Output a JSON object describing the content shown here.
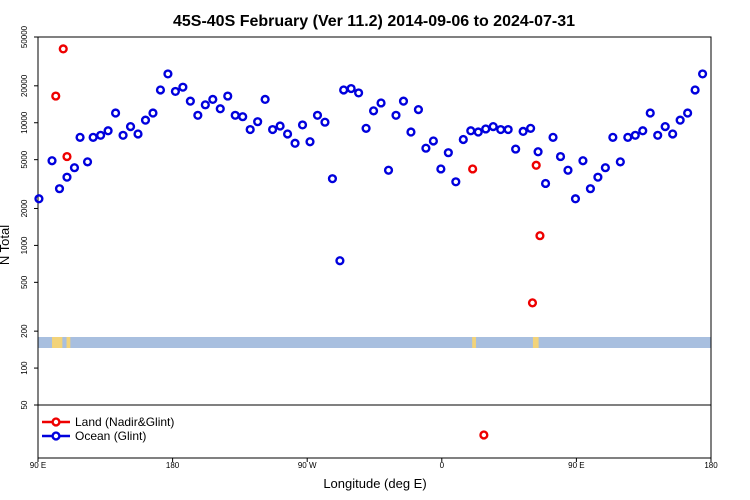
{
  "chart_data": {
    "type": "scatter",
    "title": "45S-40S February (Ver 11.2)   2014-09-06 to 2024-07-31",
    "xlabel": "Longitude (deg E)",
    "ylabel": "N Total",
    "y_scale": "log",
    "ylim": [
      50,
      50000
    ],
    "y_ticks": [
      50,
      100,
      200,
      500,
      1000,
      2000,
      5000,
      10000,
      20000,
      50000
    ],
    "y_tick_labels": [
      "50",
      "100",
      "200",
      "500",
      "1000",
      "2000",
      "5000",
      "10000",
      "20000",
      "50000"
    ],
    "x_tick_labels": [
      "90 E",
      "180",
      "90 W",
      "0",
      "90 E",
      "180"
    ],
    "grid": false,
    "legend_position": "bottom-left",
    "land_mask_strip": {
      "color": "#a8bfdf",
      "land_color": "#f2d37a"
    },
    "series": [
      {
        "name": "Land (Nadir&Glint)",
        "color": "#ee0000",
        "points": [
          [
            -143.5,
            4200
          ],
          [
            -175.5,
            340
          ],
          [
            -174.5,
            4500
          ],
          [
            -171.5,
            1200
          ],
          [
            -80.5,
            16500
          ],
          [
            -76.5,
            40000
          ],
          [
            -74.5,
            5300
          ],
          [
            142.5,
            4200
          ],
          [
            174.5,
            340
          ],
          [
            176.5,
            4500
          ],
          [
            178.5,
            1200
          ]
        ],
        "below_axis_points": [
          -144.5,
          148.5
        ]
      },
      {
        "name": "Ocean (Glint)",
        "color": "#0000dd",
        "points": [
          [
            -89.5,
            2400
          ],
          [
            -82.5,
            4900
          ],
          [
            -78.5,
            2900
          ],
          [
            -74.5,
            3600
          ],
          [
            -70.5,
            4300
          ],
          [
            -67.5,
            7600
          ],
          [
            -63.5,
            4800
          ],
          [
            -60.5,
            7600
          ],
          [
            -56.5,
            7900
          ],
          [
            -52.5,
            8600
          ],
          [
            -48.5,
            12000
          ],
          [
            -44.5,
            7900
          ],
          [
            -40.5,
            9300
          ],
          [
            -36.5,
            8100
          ],
          [
            -32.5,
            10500
          ],
          [
            -28.5,
            12000
          ],
          [
            -24.5,
            18500
          ],
          [
            -20.5,
            25000
          ],
          [
            -16.5,
            18000
          ],
          [
            -12.5,
            19500
          ],
          [
            -8.5,
            15000
          ],
          [
            -4.5,
            11500
          ],
          [
            -0.5,
            14000
          ],
          [
            3.5,
            15500
          ],
          [
            7.5,
            13000
          ],
          [
            11.5,
            16500
          ],
          [
            15.5,
            11500
          ],
          [
            19.5,
            11200
          ],
          [
            23.5,
            8800
          ],
          [
            27.5,
            10200
          ],
          [
            31.5,
            15500
          ],
          [
            35.5,
            8800
          ],
          [
            39.5,
            9400
          ],
          [
            43.5,
            8100
          ],
          [
            47.5,
            6800
          ],
          [
            51.5,
            9600
          ],
          [
            55.5,
            7000
          ],
          [
            59.5,
            11500
          ],
          [
            63.5,
            10100
          ],
          [
            67.5,
            3500
          ],
          [
            71.5,
            750
          ],
          [
            73.5,
            18500
          ],
          [
            77.5,
            19000
          ],
          [
            81.5,
            17500
          ],
          [
            85.5,
            9000
          ],
          [
            89.5,
            12500
          ],
          [
            93.5,
            14500
          ],
          [
            97.5,
            4100
          ],
          [
            101.5,
            11500
          ],
          [
            105.5,
            15000
          ],
          [
            109.5,
            8400
          ],
          [
            113.5,
            12800
          ],
          [
            117.5,
            6200
          ],
          [
            121.5,
            7100
          ],
          [
            125.5,
            4200
          ],
          [
            129.5,
            5700
          ],
          [
            133.5,
            3300
          ],
          [
            137.5,
            7300
          ],
          [
            141.5,
            8600
          ],
          [
            145.5,
            8400
          ],
          [
            149.5,
            8900
          ],
          [
            153.5,
            9300
          ],
          [
            157.5,
            8800
          ],
          [
            161.5,
            8800
          ],
          [
            165.5,
            6100
          ],
          [
            169.5,
            8500
          ],
          [
            173.5,
            9000
          ],
          [
            177.5,
            5800
          ],
          [
            181.5,
            3200
          ],
          [
            185.5,
            7600
          ],
          [
            189.5,
            5300
          ],
          [
            193.5,
            4100
          ],
          [
            197.5,
            2400
          ],
          [
            201.5,
            4900
          ],
          [
            205.5,
            2900
          ],
          [
            209.5,
            3600
          ],
          [
            213.5,
            4300
          ],
          [
            217.5,
            7600
          ],
          [
            221.5,
            4800
          ],
          [
            225.5,
            7600
          ],
          [
            229.5,
            7900
          ],
          [
            233.5,
            8600
          ],
          [
            237.5,
            12000
          ],
          [
            241.5,
            7900
          ],
          [
            245.5,
            9300
          ],
          [
            249.5,
            8100
          ],
          [
            253.5,
            10500
          ],
          [
            257.5,
            12000
          ],
          [
            261.5,
            18500
          ],
          [
            265.5,
            25000
          ]
        ]
      }
    ]
  }
}
